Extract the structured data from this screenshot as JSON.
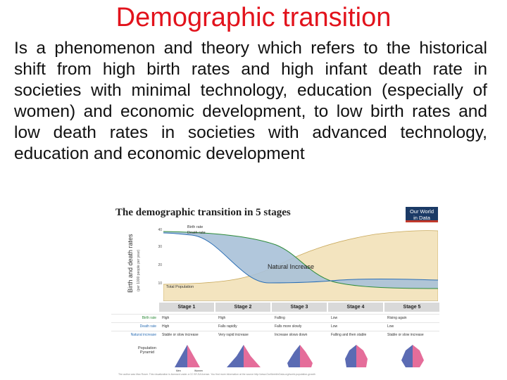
{
  "title": "Demographic transition",
  "paragraph": "Is a phenomenon and theory which refers to the historical shift from high birth rates and high infant death rate in societies with minimal technology, education (especially of women) and economic development, to low birth rates and low death rates in societies with advanced technology, education and economic development",
  "figure": {
    "title": "The demographic transition in 5 stages",
    "logo_line1": "Our World",
    "logo_line2": "in Data",
    "y_axis_label": "Birth and death rates",
    "y_axis_sublabel": "(per 1000 people per year)",
    "y_ticks": [
      "40",
      "30",
      "20",
      "10"
    ],
    "birth_rate_label": "Birth rate",
    "death_rate_label": "Death rate",
    "natural_increase_label": "Natural Increase",
    "total_population_label": "Total Population",
    "stages": [
      "Stage 1",
      "Stage 2",
      "Stage 3",
      "Stage 4",
      "Stage 5"
    ],
    "rows": [
      {
        "label": "Birth rate",
        "color": "#2e8b3a",
        "values": [
          "High",
          "High",
          "Falling",
          "Low",
          "Rising again"
        ]
      },
      {
        "label": "Death rate",
        "color": "#2c6fb5",
        "values": [
          "High",
          "Falls rapidly",
          "Falls more slowly",
          "Low",
          "Low"
        ]
      },
      {
        "label": "Natural increase",
        "color": "#2c6fb5",
        "values": [
          "Stable or slow increase",
          "Very rapid increase",
          "Increase slows down",
          "Falling and then stable",
          "Stable or slow increase"
        ]
      }
    ],
    "pyramid_label_line1": "Population",
    "pyramid_label_line2": "Pyramid",
    "pyramid_axis": [
      "Men",
      "Women"
    ],
    "footer": "The author was Max Roser. This visualization is licensed under a CC BY-SA license. You find more information at the source http://www.OurWorldInData.org/world-population-growth",
    "colors": {
      "title": "#e2131c",
      "natural_increase_fill": "#a9c1d8",
      "population_fill": "#f3e4bf",
      "men": "#5b6bb3",
      "women": "#e56d9a"
    }
  }
}
